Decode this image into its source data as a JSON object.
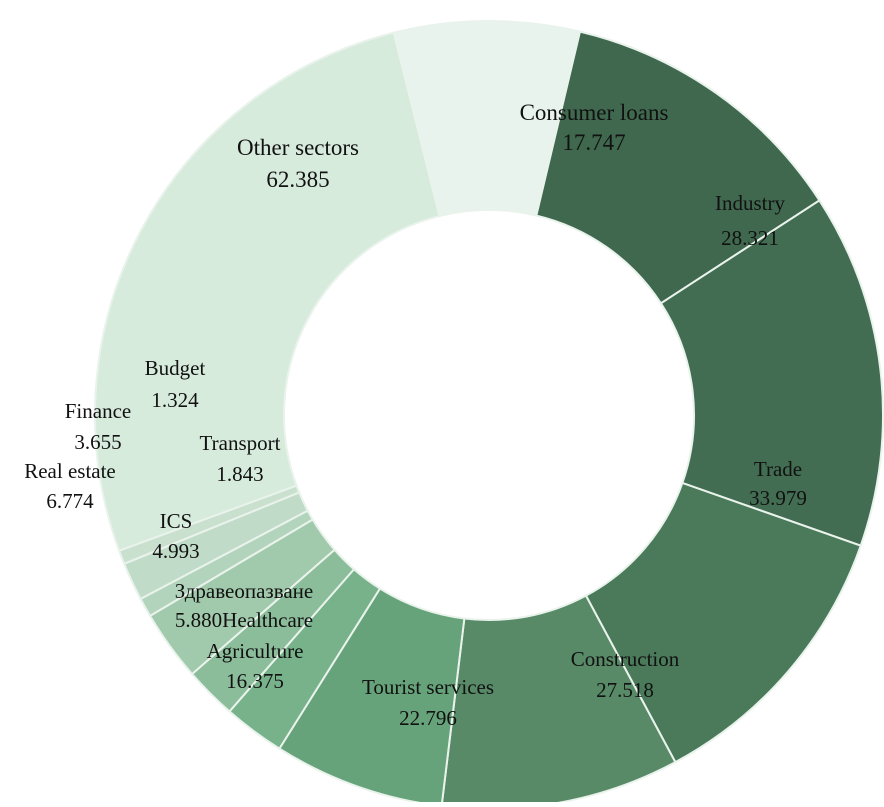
{
  "chart_data": {
    "type": "pie",
    "title": "",
    "donut": true,
    "slices": [
      {
        "label": "Consumer loans",
        "value": 17.747,
        "value_text": "17.747",
        "color": "#e7f3ec",
        "text_color": "#111111"
      },
      {
        "label": "Industry",
        "value": 28.321,
        "value_text": "28.321",
        "color": "#3f684e",
        "text_color": "#111111"
      },
      {
        "label": "Trade",
        "value": 33.979,
        "value_text": "33.979",
        "color": "#426d52",
        "text_color": "#111111"
      },
      {
        "label": "Construction",
        "value": 27.518,
        "value_text": "27.518",
        "color": "#4a7a5a",
        "text_color": "#111111"
      },
      {
        "label": "Tourist services",
        "value": 22.796,
        "value_text": "22.796",
        "color": "#588a67",
        "text_color": "#111111"
      },
      {
        "label": "Agriculture",
        "value": 16.375,
        "value_text": "16.375",
        "color": "#67a37a",
        "text_color": "#111111"
      },
      {
        "label": "Здравеопазване",
        "label2": "Healthcare",
        "value": 5.88,
        "value_text": "5.880",
        "color": "#77b28a",
        "text_color": "#111111"
      },
      {
        "label": "ICS",
        "value": 4.993,
        "value_text": "4.993",
        "color": "#8bbd9b",
        "text_color": "#111111"
      },
      {
        "label": "Real estate",
        "value": 6.774,
        "value_text": "6.774",
        "color": "#a1c9ab",
        "text_color": "#111111"
      },
      {
        "label": "Transport",
        "value": 1.843,
        "value_text": "1.843",
        "color": "#b3d4bc",
        "text_color": "#111111"
      },
      {
        "label": "Finance",
        "value": 3.655,
        "value_text": "3.655",
        "color": "#c0dbc7",
        "text_color": "#111111"
      },
      {
        "label": "Budget",
        "value": 1.324,
        "value_text": "1.324",
        "color": "#c9e0ce",
        "text_color": "#111111"
      },
      {
        "label": "Other sectors",
        "value": 62.385,
        "value_text": "62.385",
        "color": "#d6ebdc",
        "text_color": "#111111"
      }
    ]
  }
}
